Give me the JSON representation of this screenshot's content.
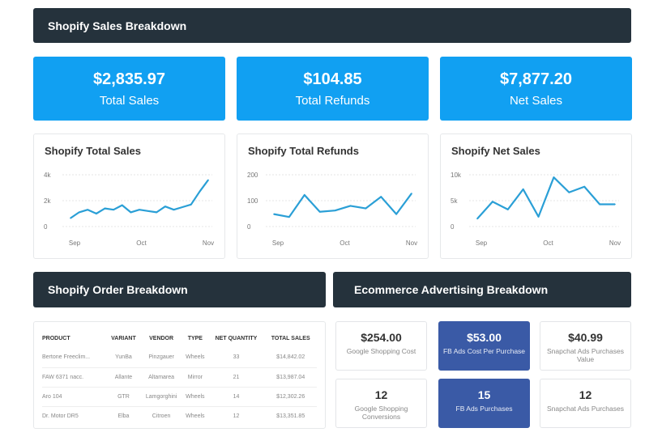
{
  "header": {
    "title": "Shopify Sales Breakdown"
  },
  "kpis": [
    {
      "value": "$2,835.97",
      "label": "Total Sales"
    },
    {
      "value": "$104.85",
      "label": "Total Refunds"
    },
    {
      "value": "$7,877.20",
      "label": "Net Sales"
    }
  ],
  "colors": {
    "header": "#25323c",
    "kpi": "#11a0f2",
    "line": "#2a9fd6",
    "highlight": "#3a5aa6"
  },
  "chart_data": [
    {
      "type": "line",
      "title": "Shopify Total Sales",
      "x_ticks": [
        "Sep",
        "Oct",
        "Nov"
      ],
      "y_ticks": [
        "0",
        "2k",
        "4k"
      ],
      "ylim": [
        0,
        4000
      ],
      "grid": true,
      "values": [
        650,
        1100,
        1300,
        1000,
        1400,
        1300,
        1650,
        1100,
        1300,
        1200,
        1100,
        1550,
        1300,
        1500,
        1700,
        2700,
        3600
      ]
    },
    {
      "type": "line",
      "title": "Shopify Total Refunds",
      "x_ticks": [
        "Sep",
        "Oct",
        "Nov"
      ],
      "y_ticks": [
        "0",
        "100",
        "200"
      ],
      "ylim": [
        0,
        200
      ],
      "grid": true,
      "values": [
        48,
        37,
        122,
        57,
        62,
        80,
        70,
        115,
        48,
        128
      ]
    },
    {
      "type": "line",
      "title": "Shopify Net Sales",
      "x_ticks": [
        "Sep",
        "Oct",
        "Nov"
      ],
      "y_ticks": [
        "0",
        "5k",
        "10k"
      ],
      "ylim": [
        0,
        10000
      ],
      "grid": true,
      "values": [
        1500,
        4800,
        3300,
        7200,
        1900,
        9500,
        6600,
        7700,
        4300,
        4300
      ]
    }
  ],
  "order": {
    "title": "Shopify Order Breakdown",
    "columns": [
      "PRODUCT",
      "VARIANT",
      "VENDOR",
      "TYPE",
      "NET QUANTITY",
      "TOTAL SALES"
    ],
    "rows": [
      [
        "Bertone Freeclim...",
        "YunBa",
        "Pinzgauer",
        "Wheels",
        "33",
        "$14,842.02"
      ],
      [
        "FAW 6371 nacc.",
        "Allante",
        "Altamarea",
        "Mirror",
        "21",
        "$13,987.04"
      ],
      [
        "Aro 104",
        "GTR",
        "Lamgorghini",
        "Wheels",
        "14",
        "$12,302.26"
      ],
      [
        "Dr. Motor DR5",
        "Elba",
        "Citroen",
        "Wheels",
        "12",
        "$13,351.85"
      ]
    ]
  },
  "ads": {
    "title": "Ecommerce Advertising Breakdown",
    "tiles": [
      {
        "value": "$254.00",
        "label": "Google Shopping Cost",
        "highlight": false
      },
      {
        "value": "$53.00",
        "label": "FB Ads Cost Per Purchase",
        "highlight": true
      },
      {
        "value": "$40.99",
        "label": "Snapchat Ads Purchases Value",
        "highlight": false
      },
      {
        "value": "12",
        "label": "Google Shopping Conversions",
        "highlight": false
      },
      {
        "value": "15",
        "label": "FB Ads Purchases",
        "highlight": true
      },
      {
        "value": "12",
        "label": "Snapchat Ads Purchases",
        "highlight": false
      }
    ]
  }
}
